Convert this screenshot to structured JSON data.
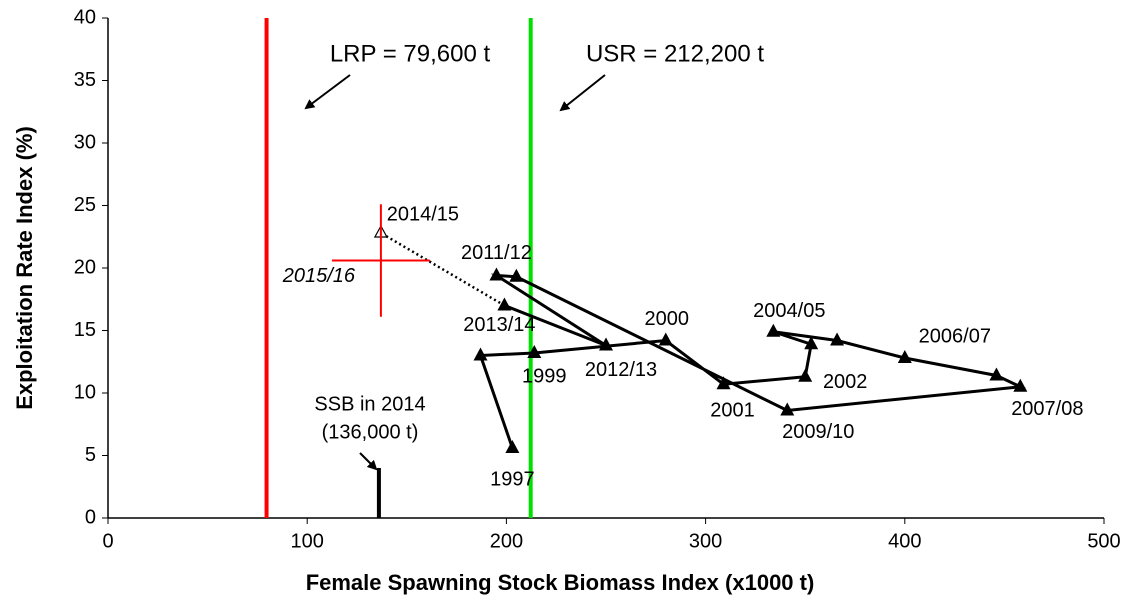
{
  "chart_data": {
    "type": "line",
    "xlabel": "Female Spawning Stock Biomass Index (x1000 t)",
    "ylabel": "Exploitation Rate Index (%)",
    "xlim": [
      0,
      500
    ],
    "xticks": [
      0,
      100,
      200,
      300,
      400,
      500
    ],
    "ylim": [
      0,
      40
    ],
    "yticks": [
      0,
      5,
      10,
      15,
      20,
      25,
      30,
      35,
      40
    ],
    "series": [
      {
        "color": "#000000",
        "x": [
          203,
          187,
          214,
          280,
          309,
          350,
          353,
          334,
          366,
          400,
          446,
          458,
          341,
          205,
          195,
          250,
          199
        ],
        "y": [
          5.6,
          13.0,
          13.2,
          14.2,
          10.7,
          11.3,
          13.9,
          14.9,
          14.2,
          12.8,
          11.4,
          10.5,
          8.6,
          19.3,
          19.4,
          13.8,
          17.0
        ],
        "labels": [
          "1997",
          null,
          "1999",
          "2000",
          "2001",
          "2002",
          null,
          "2004/05",
          null,
          "2006/07",
          null,
          "2007/08",
          "2009/10",
          null,
          "2011/12",
          "2012/13",
          "2013/14"
        ]
      }
    ],
    "projection": {
      "label": "2014/15",
      "x": 137,
      "y": 22.8
    },
    "error_cross": {
      "label": "2015/16",
      "x": 137,
      "y": 20.6,
      "xerr": 24.6,
      "yerr": 4.5,
      "color": "#ff0000"
    },
    "reference_lines": [
      {
        "label": "LRP = 79,600 t",
        "value": 79.6,
        "color": "#ff0000"
      },
      {
        "label": "USR = 212,200 t",
        "value": 212.2,
        "color": "#00e000"
      }
    ],
    "ssb_marker": {
      "label_lines": [
        "SSB in 2014",
        "(136,000 t)"
      ],
      "x": 136,
      "height": 4
    }
  }
}
